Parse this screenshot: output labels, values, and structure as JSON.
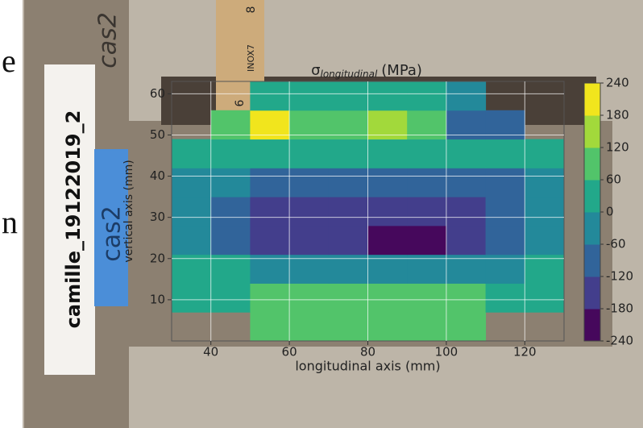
{
  "chart_data": {
    "type": "contour",
    "title_symbol": "σ",
    "title_subscript": "longitudinal",
    "title_unit": "(MPa)",
    "x_label": "longitudinal axis (mm)",
    "y_label": "vertical axis (mm)",
    "xlim": [
      30,
      130
    ],
    "ylim": [
      0,
      63
    ],
    "xticks": [
      40,
      60,
      80,
      100,
      120
    ],
    "yticks": [
      10,
      20,
      30,
      40,
      50,
      60
    ],
    "grid": true,
    "x_edges": [
      30,
      40,
      50,
      60,
      70,
      80,
      90,
      100,
      110,
      120,
      130
    ],
    "y_edges": [
      0,
      7,
      14,
      21,
      28,
      35,
      42,
      49,
      56,
      63
    ],
    "z": [
      [
        null,
        null,
        70,
        80,
        80,
        80,
        80,
        70,
        null,
        null
      ],
      [
        40,
        50,
        70,
        70,
        70,
        70,
        70,
        60,
        50,
        40
      ],
      [
        20,
        0,
        -40,
        -40,
        -40,
        -40,
        -40,
        -40,
        -20,
        10
      ],
      [
        -20,
        -80,
        -130,
        -140,
        -150,
        -190,
        -190,
        -170,
        -100,
        -30
      ],
      [
        -30,
        -90,
        -140,
        -150,
        -140,
        -150,
        -160,
        -180,
        -110,
        -40
      ],
      [
        -10,
        -60,
        -90,
        -110,
        -100,
        -100,
        -100,
        -90,
        -70,
        -20
      ],
      [
        30,
        20,
        0,
        10,
        30,
        30,
        20,
        10,
        10,
        40
      ],
      [
        null,
        70,
        190,
        60,
        60,
        130,
        70,
        -70,
        -70,
        null
      ],
      [
        null,
        null,
        40,
        30,
        20,
        30,
        20,
        -60,
        null,
        null
      ]
    ],
    "levels": [
      -240,
      -180,
      -120,
      -60,
      0,
      60,
      120,
      180,
      240
    ],
    "colors": [
      "#46085c",
      "#433e8c",
      "#31649a",
      "#23899a",
      "#22a88a",
      "#52c46a",
      "#a2d93b",
      "#f1e51d"
    ]
  },
  "photo": {
    "label": "camille_19122019_2",
    "tape": "cas2",
    "handwriting": "cas2",
    "ruler": [
      "8",
      "INOX7",
      "6"
    ],
    "edge_glyphs": [
      "e",
      "n"
    ]
  }
}
